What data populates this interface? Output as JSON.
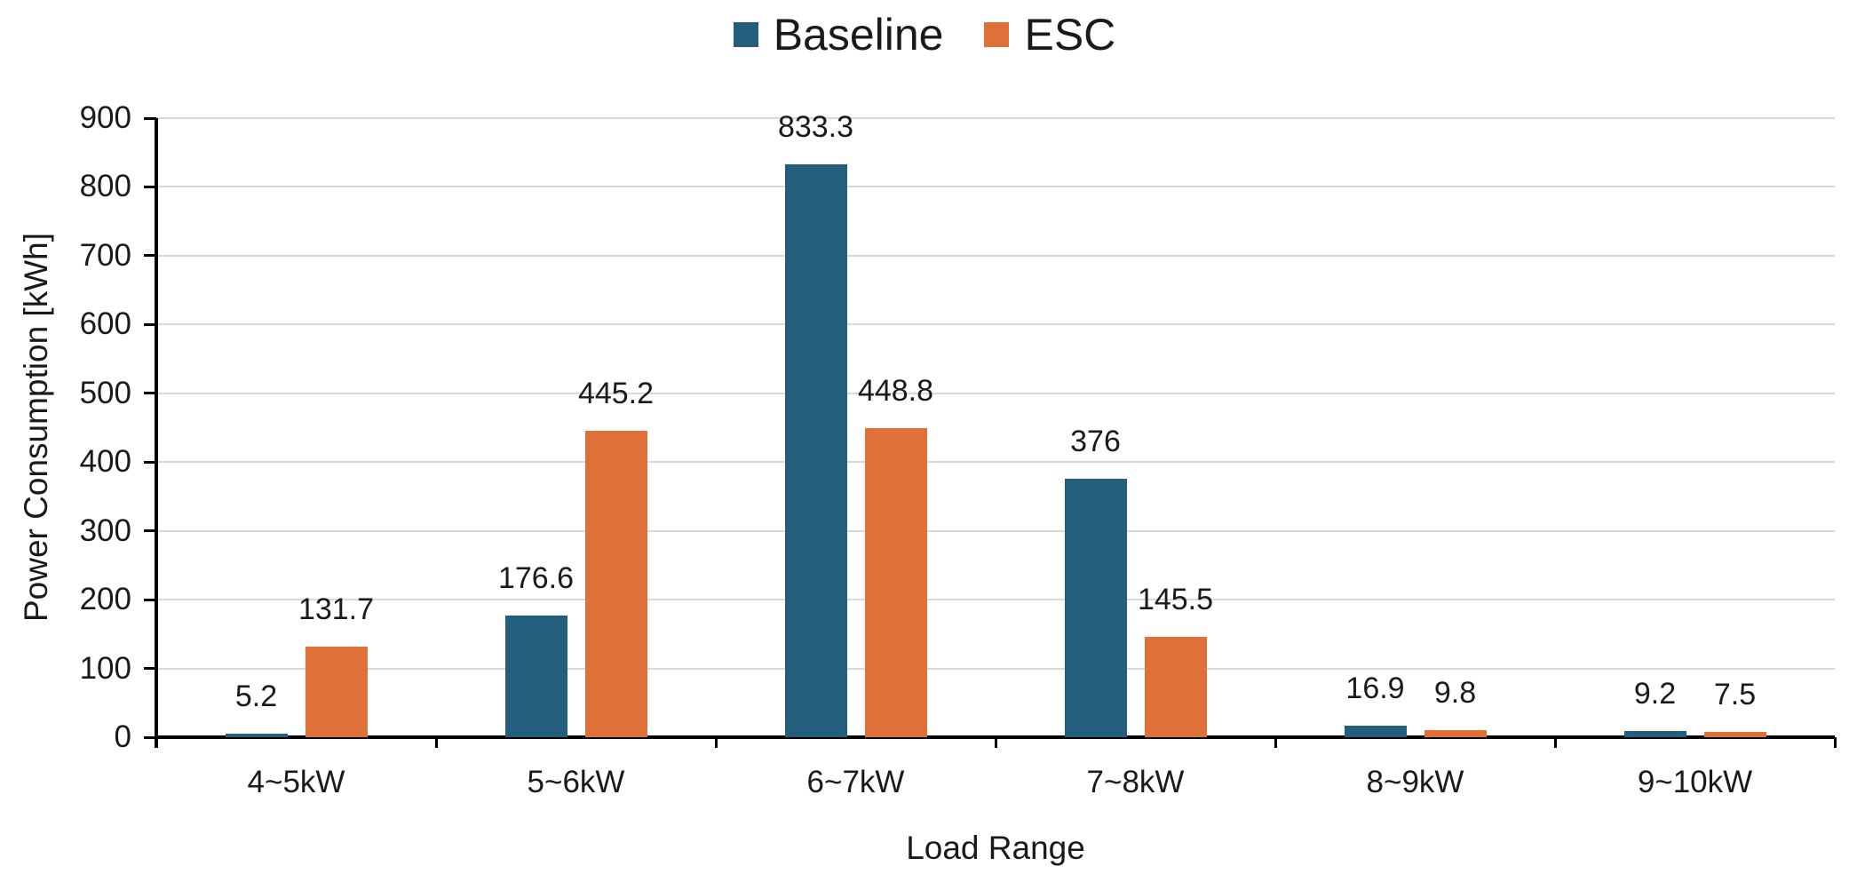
{
  "chart_data": {
    "type": "bar",
    "title": "",
    "categories": [
      "4~5kW",
      "5~6kW",
      "6~7kW",
      "7~8kW",
      "8~9kW",
      "9~10kW"
    ],
    "series": [
      {
        "name": "Baseline",
        "color": "#245e7d",
        "values": [
          5.2,
          176.6,
          833.3,
          376,
          16.9,
          9.2
        ],
        "labels": [
          "5.2",
          "176.6",
          "833.3",
          "376",
          "16.9",
          "9.2"
        ]
      },
      {
        "name": "ESC",
        "color": "#de7038",
        "values": [
          131.7,
          445.2,
          448.8,
          145.5,
          9.8,
          7.5
        ],
        "labels": [
          "131.7",
          "445.2",
          "448.8",
          "145.5",
          "9.8",
          "7.5"
        ]
      }
    ],
    "xlabel": "Load Range",
    "ylabel": "Power Consumption [kWh]",
    "ylim": [
      0,
      900
    ],
    "ytick_step": 100,
    "yticks": [
      "0",
      "100",
      "200",
      "300",
      "400",
      "500",
      "600",
      "700",
      "800",
      "900"
    ],
    "grid": true,
    "legend_position": "top",
    "colors": {
      "grid": "#d9d9d9",
      "axis": "#000000",
      "text": "#1a1a1a"
    }
  }
}
